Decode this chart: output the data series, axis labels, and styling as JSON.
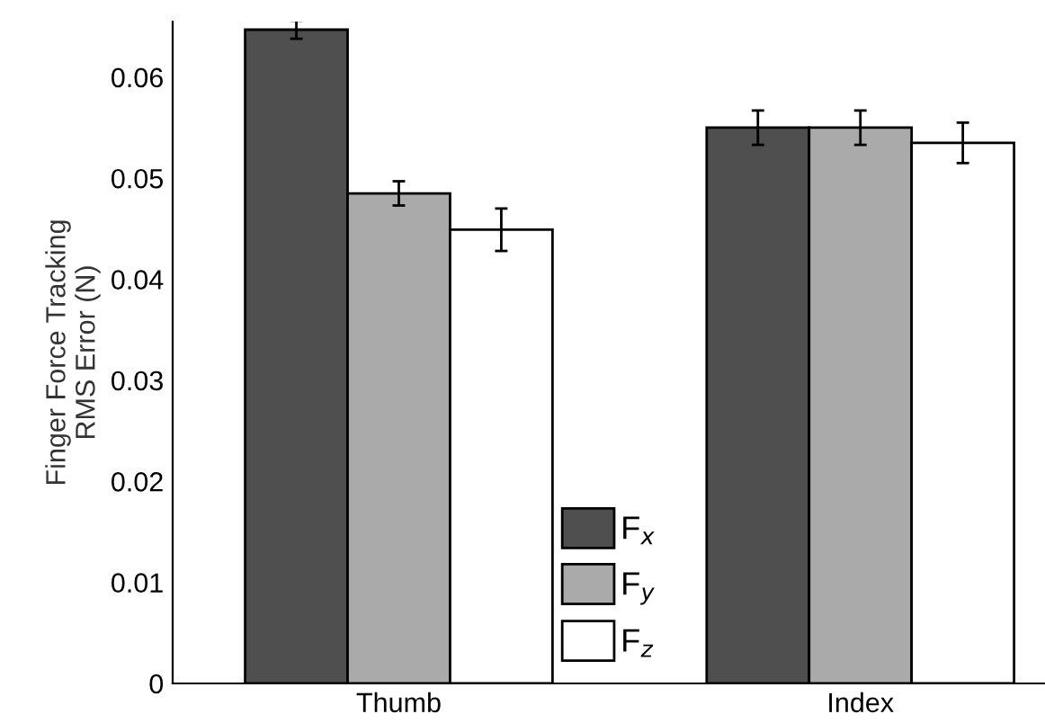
{
  "chart_data": {
    "type": "bar",
    "ylabel": "Finger Force Tracking\nRMS Error (N)",
    "categories": [
      "Thumb",
      "Index"
    ],
    "series": [
      {
        "name": "F$_{x}$",
        "color": "#4f4f4f",
        "values": [
          0.0647,
          0.055
        ],
        "errors": [
          0.0009,
          0.0017
        ]
      },
      {
        "name": "F$_{y}$",
        "color": "#aaaaaa",
        "values": [
          0.0485,
          0.055
        ],
        "errors": [
          0.0012,
          0.0017
        ]
      },
      {
        "name": "F$_{z}$",
        "color": "#ffffff",
        "values": [
          0.0449,
          0.0535
        ],
        "errors": [
          0.0021,
          0.002
        ]
      }
    ],
    "ylim": [
      0,
      0.0655
    ],
    "yticks": [
      0,
      0.01,
      0.02,
      0.03,
      0.04,
      0.05,
      0.06
    ],
    "grid": false,
    "legend": "bottom"
  }
}
